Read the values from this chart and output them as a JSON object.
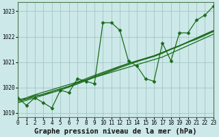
{
  "title": "Graphe pression niveau de la mer (hPa)",
  "background_color": "#cce8e8",
  "grid_color": "#9bbfbf",
  "line_color": "#1a6b1a",
  "main_y": [
    1019.6,
    1019.3,
    1019.6,
    1019.4,
    1019.2,
    1019.9,
    1019.8,
    1020.35,
    1020.25,
    1020.15,
    1022.55,
    1022.55,
    1022.25,
    1021.05,
    1020.85,
    1020.35,
    1020.25,
    1021.75,
    1021.05,
    1022.15,
    1022.15,
    1022.65,
    1022.85,
    1023.2
  ],
  "line2_y": [
    1019.55,
    1019.55,
    1019.7,
    1019.7,
    1019.85,
    1019.95,
    1020.05,
    1020.2,
    1020.3,
    1020.4,
    1020.5,
    1020.6,
    1020.7,
    1020.8,
    1020.9,
    1021.0,
    1021.1,
    1021.2,
    1021.35,
    1021.5,
    1021.65,
    1021.8,
    1021.95,
    1022.1
  ],
  "line3_y": [
    1019.5,
    1019.6,
    1019.72,
    1019.82,
    1019.92,
    1020.02,
    1020.12,
    1020.22,
    1020.35,
    1020.48,
    1020.6,
    1020.72,
    1020.84,
    1020.95,
    1021.05,
    1021.15,
    1021.25,
    1021.38,
    1021.52,
    1021.65,
    1021.78,
    1021.9,
    1022.05,
    1022.2
  ],
  "line4_y": [
    1019.45,
    1019.55,
    1019.65,
    1019.75,
    1019.85,
    1019.95,
    1020.05,
    1020.18,
    1020.3,
    1020.44,
    1020.56,
    1020.68,
    1020.82,
    1020.94,
    1021.05,
    1021.15,
    1021.25,
    1021.38,
    1021.52,
    1021.65,
    1021.8,
    1021.95,
    1022.1,
    1022.25
  ],
  "line5_y": [
    1019.4,
    1019.5,
    1019.6,
    1019.7,
    1019.8,
    1019.9,
    1020.02,
    1020.14,
    1020.27,
    1020.4,
    1020.52,
    1020.65,
    1020.78,
    1020.9,
    1021.02,
    1021.12,
    1021.22,
    1021.35,
    1021.5,
    1021.63,
    1021.78,
    1021.93,
    1022.08,
    1022.22
  ],
  "x_values": [
    0,
    1,
    2,
    3,
    4,
    5,
    6,
    7,
    8,
    9,
    10,
    11,
    12,
    13,
    14,
    15,
    16,
    17,
    18,
    19,
    20,
    21,
    22,
    23
  ],
  "xlim": [
    0,
    23
  ],
  "ylim": [
    1018.85,
    1023.35
  ],
  "yticks": [
    1019,
    1020,
    1021,
    1022,
    1023
  ],
  "xticks": [
    0,
    1,
    2,
    3,
    4,
    5,
    6,
    7,
    8,
    9,
    10,
    11,
    12,
    13,
    14,
    15,
    16,
    17,
    18,
    19,
    20,
    21,
    22,
    23
  ],
  "marker": "D",
  "marker_size": 2.5,
  "line_width": 0.9,
  "title_fontsize": 7.5,
  "tick_fontsize": 5.5
}
